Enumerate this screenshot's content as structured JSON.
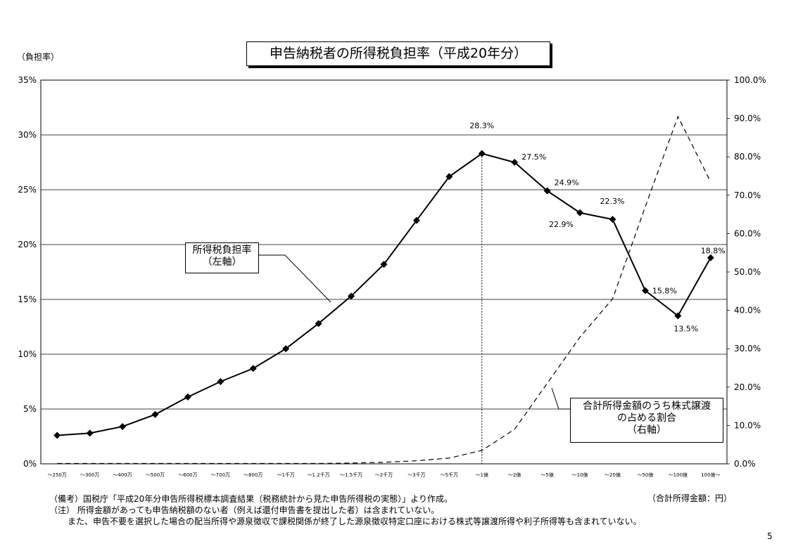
{
  "title": "申告納税者の所得税負担率（平成20年分）",
  "left_axis_unit": "（負担率）",
  "bottom_unit": "（合計所得金額：円）",
  "page_number": "5",
  "callouts": {
    "left_series_line1": "所得税負担率",
    "left_series_line2": "（左軸）",
    "right_series_line1": "合計所得金額のうち株式譲渡",
    "right_series_line2": "の占める割合",
    "right_series_line3": "（右軸）"
  },
  "notes": {
    "source": "（備考）国税庁「平成20年分申告所得税標本調査結果（税務統計から見た申告所得税の実態）」より作成。",
    "note1": "（注）  所得金額があっても申告納税額のない者（例えば還付申告書を提出した者）は含まれていない。",
    "note2": "また、申告不要を選択した場合の配当所得や源泉徴収で課税関係が終了した源泉徴収特定口座における株式等譲渡所得や利子所得等も含まれていない。"
  },
  "chart_data": {
    "type": "line",
    "categories": [
      "～250万",
      "～300万",
      "～400万",
      "～500万",
      "～600万",
      "～700万",
      "～800万",
      "～1千万",
      "～1.2千万",
      "～1.5千万",
      "～2千万",
      "～3千万",
      "～5千万",
      "～1億",
      "～2億",
      "～5億",
      "～10億",
      "～20億",
      "～50億",
      "～100億",
      "100億～"
    ],
    "y_left": {
      "ylim": [
        0,
        35
      ],
      "ticks": [
        0,
        5,
        10,
        15,
        20,
        25,
        30,
        35
      ],
      "tick_labels": [
        "0%",
        "5%",
        "10%",
        "15%",
        "20%",
        "25%",
        "30%",
        "35%"
      ]
    },
    "y_right": {
      "ylim": [
        0,
        100
      ],
      "ticks": [
        0,
        10,
        20,
        30,
        40,
        50,
        60,
        70,
        80,
        90,
        100
      ],
      "tick_labels": [
        "0.0%",
        "10.0%",
        "20.0%",
        "30.0%",
        "40.0%",
        "50.0%",
        "60.0%",
        "70.0%",
        "80.0%",
        "90.0%",
        "100.0%"
      ]
    },
    "grid": true,
    "series": [
      {
        "name": "所得税負担率（左軸）",
        "axis": "left",
        "style": "solid-diamond",
        "values": [
          2.6,
          2.8,
          3.4,
          4.5,
          6.1,
          7.5,
          8.7,
          10.5,
          12.8,
          15.3,
          18.2,
          22.2,
          26.2,
          28.3,
          27.5,
          24.9,
          22.9,
          22.3,
          15.8,
          13.5,
          18.8
        ],
        "data_labels": {
          "13": "28.3%",
          "14": "27.5%",
          "15": "24.9%",
          "16": "22.9%",
          "17": "22.3%",
          "18": "15.8%",
          "19": "13.5%",
          "20": "18.8%"
        }
      },
      {
        "name": "合計所得金額のうち株式譲渡の占める割合（右軸）",
        "axis": "right",
        "style": "dashed",
        "values": [
          0.1,
          0.1,
          0.1,
          0.1,
          0.1,
          0.1,
          0.1,
          0.1,
          0.1,
          0.2,
          0.4,
          0.8,
          1.5,
          3.5,
          9.0,
          21.0,
          33.0,
          43.0,
          67.0,
          90.5,
          73.5
        ]
      }
    ],
    "vertical_marker_category": "～1億"
  }
}
